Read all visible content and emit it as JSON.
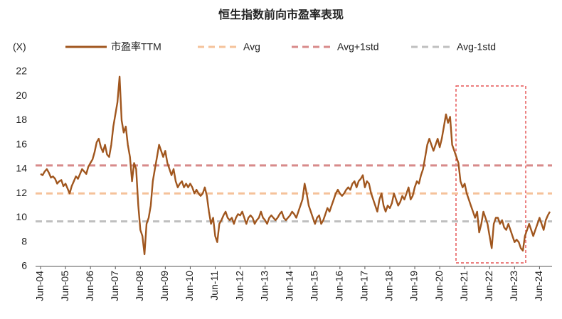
{
  "chart_data": {
    "type": "line",
    "title": "恒生指数前向市盈率表现",
    "y_label": "(X)",
    "categories": [
      "Jun-04",
      null,
      null,
      null,
      null,
      null,
      null,
      null,
      null,
      null,
      null,
      null,
      "Jun-05",
      null,
      null,
      null,
      null,
      null,
      null,
      null,
      null,
      null,
      null,
      null,
      "Jun-06",
      null,
      null,
      null,
      null,
      null,
      null,
      null,
      null,
      null,
      null,
      null,
      "Jun-07",
      null,
      null,
      null,
      null,
      null,
      null,
      null,
      null,
      null,
      null,
      null,
      "Jun-08",
      null,
      null,
      null,
      null,
      null,
      null,
      null,
      null,
      null,
      null,
      null,
      "Jun-09",
      null,
      null,
      null,
      null,
      null,
      null,
      null,
      null,
      null,
      null,
      null,
      "Jun-10",
      null,
      null,
      null,
      null,
      null,
      null,
      null,
      null,
      null,
      null,
      null,
      "Jun-11",
      null,
      null,
      null,
      null,
      null,
      null,
      null,
      null,
      null,
      null,
      null,
      "Jun-12",
      null,
      null,
      null,
      null,
      null,
      null,
      null,
      null,
      null,
      null,
      null,
      "Jun-13",
      null,
      null,
      null,
      null,
      null,
      null,
      null,
      null,
      null,
      null,
      null,
      "Jun-14",
      null,
      null,
      null,
      null,
      null,
      null,
      null,
      null,
      null,
      null,
      null,
      "Jun-15",
      null,
      null,
      null,
      null,
      null,
      null,
      null,
      null,
      null,
      null,
      null,
      "Jun-16",
      null,
      null,
      null,
      null,
      null,
      null,
      null,
      null,
      null,
      null,
      null,
      "Jun-17",
      null,
      null,
      null,
      null,
      null,
      null,
      null,
      null,
      null,
      null,
      null,
      "Jun-18",
      null,
      null,
      null,
      null,
      null,
      null,
      null,
      null,
      null,
      null,
      null,
      "Jun-19",
      null,
      null,
      null,
      null,
      null,
      null,
      null,
      null,
      null,
      null,
      null,
      "Jun-20",
      null,
      null,
      null,
      null,
      null,
      null,
      null,
      null,
      null,
      null,
      null,
      "Jun-21",
      null,
      null,
      null,
      null,
      null,
      null,
      null,
      null,
      null,
      null,
      null,
      "Jun-22",
      null,
      null,
      null,
      null,
      null,
      null,
      null,
      null,
      null,
      null,
      null,
      "Jun-23",
      null,
      null,
      null,
      null,
      null,
      null,
      null,
      null,
      null,
      null,
      null,
      "Jun-24",
      null,
      null,
      null,
      null,
      null
    ],
    "series": [
      {
        "name": "市盈率TTM",
        "color": "#a0561e",
        "values": [
          13.6,
          13.5,
          13.8,
          14.0,
          13.7,
          13.3,
          13.4,
          13.2,
          12.8,
          13.0,
          13.1,
          12.6,
          12.8,
          12.4,
          12.0,
          12.6,
          13.0,
          13.4,
          13.2,
          13.6,
          14.0,
          13.8,
          13.6,
          14.2,
          14.5,
          14.8,
          15.4,
          16.2,
          16.5,
          15.8,
          15.4,
          16.0,
          15.2,
          15.0,
          16.0,
          17.5,
          18.5,
          19.5,
          21.6,
          18,
          17,
          17.5,
          16,
          15,
          13,
          14.5,
          14,
          11,
          9,
          8.5,
          7.0,
          9.5,
          10,
          11,
          13,
          14,
          15,
          16,
          15.5,
          15,
          15.5,
          14.5,
          14,
          13.5,
          14,
          13,
          12.5,
          12.8,
          13,
          12.5,
          12.8,
          12.5,
          12.8,
          12.5,
          12,
          12.3,
          12,
          11.8,
          12,
          12.5,
          11.8,
          10.5,
          9.5,
          10,
          8.5,
          8.0,
          9.5,
          9.8,
          10.2,
          10.5,
          10,
          9.8,
          10,
          9.5,
          10,
          10.3,
          10.2,
          10.5,
          10,
          9.5,
          10,
          10.2,
          10,
          9.5,
          9.8,
          10,
          10.5,
          10,
          9.8,
          9.5,
          10,
          10.2,
          10,
          9.8,
          10,
          10.3,
          10.5,
          10,
          9.8,
          10,
          10.2,
          10.5,
          10.3,
          10,
          10.5,
          11,
          11.5,
          12.8,
          12,
          11,
          10.5,
          10,
          9.5,
          10,
          10.2,
          9.5,
          9.8,
          10.3,
          10.8,
          10.5,
          11,
          11.5,
          12,
          12.3,
          12,
          11.8,
          12,
          12.3,
          12.5,
          12.3,
          12.8,
          13,
          12.5,
          13,
          13.2,
          13.5,
          12.5,
          13,
          12.8,
          12,
          11.5,
          11,
          10.5,
          11.5,
          12,
          11,
          10.5,
          11,
          10.8,
          11.2,
          12,
          11.5,
          11,
          11.3,
          11.8,
          11.5,
          12,
          12.5,
          11.5,
          11.8,
          12.5,
          13,
          12.8,
          13.5,
          14,
          15,
          16,
          16.5,
          16,
          15.5,
          16,
          16.5,
          15.8,
          16.5,
          17.5,
          18.5,
          17.8,
          18.3,
          16,
          15.5,
          15,
          14.5,
          13,
          12.5,
          12.8,
          12,
          11.5,
          11,
          10.5,
          10,
          10.5,
          8.8,
          9.5,
          10.5,
          10,
          9.5,
          8.5,
          7.5,
          9.5,
          10,
          10,
          9.5,
          9.8,
          9.2,
          9,
          9.5,
          9,
          8.5,
          8,
          8.2,
          8.0,
          7.5,
          7.3,
          8.5,
          9,
          9.5,
          9,
          8.5,
          9,
          9.5,
          10,
          9.5,
          9,
          9.8,
          10.2,
          10.5
        ]
      }
    ],
    "hlines": [
      {
        "name": "Avg",
        "color": "#f5c29a",
        "value": 12.0
      },
      {
        "name": "Avg+1std",
        "color": "#d88a8a",
        "value": 14.3
      },
      {
        "name": "Avg-1std",
        "color": "#bfbfbf",
        "value": 9.7
      }
    ],
    "ylim": [
      6,
      22
    ],
    "yticks": [
      6,
      8,
      10,
      12,
      14,
      16,
      18,
      20,
      22
    ],
    "grid": false
  }
}
